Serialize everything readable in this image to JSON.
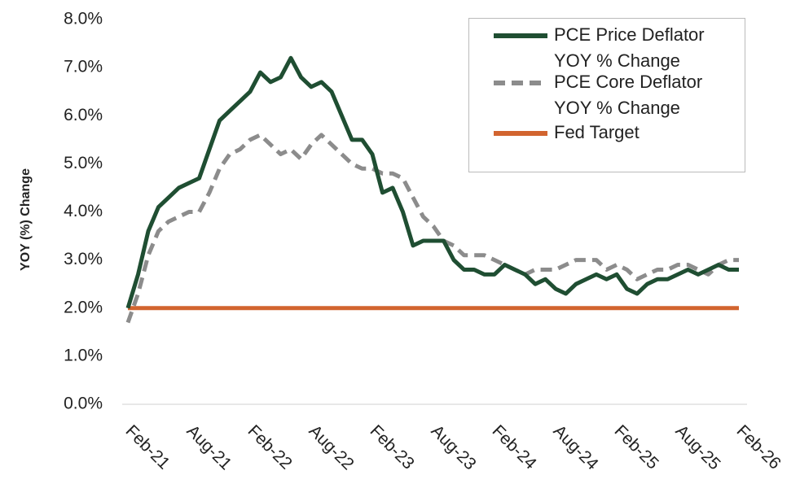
{
  "chart_data": {
    "type": "line",
    "y_label": "YOY (%) Change",
    "categories": [
      "Feb-21",
      null,
      null,
      null,
      null,
      null,
      "Aug-21",
      null,
      null,
      null,
      null,
      null,
      "Feb-22",
      null,
      null,
      null,
      null,
      null,
      "Aug-22",
      null,
      null,
      null,
      null,
      null,
      "Feb-23",
      null,
      null,
      null,
      null,
      null,
      "Aug-23",
      null,
      null,
      null,
      null,
      null,
      "Feb-24",
      null,
      null,
      null,
      null,
      null,
      "Aug-24",
      null,
      null,
      null,
      null,
      null,
      "Feb-25",
      null,
      null,
      null,
      null,
      null,
      "Aug-25",
      null,
      null,
      null,
      null,
      null,
      "Feb-26"
    ],
    "series": [
      {
        "name": "PCE Price Deflator YOY % Change",
        "color": "#1f4e32",
        "style": "solid",
        "values": [
          2.0,
          2.7,
          3.6,
          4.1,
          4.3,
          4.5,
          4.6,
          4.7,
          5.3,
          5.9,
          6.1,
          6.3,
          6.5,
          6.9,
          6.7,
          6.8,
          7.2,
          6.8,
          6.6,
          6.7,
          6.5,
          6.0,
          5.5,
          5.5,
          5.2,
          4.4,
          4.5,
          4.0,
          3.3,
          3.4,
          3.4,
          3.4,
          3.0,
          2.8,
          2.8,
          2.7,
          2.7,
          2.9,
          2.8,
          2.7,
          2.5,
          2.6,
          2.4,
          2.3,
          2.5,
          2.6,
          2.7,
          2.6,
          2.7,
          2.4,
          2.3,
          2.5,
          2.6,
          2.6,
          2.7,
          2.8,
          2.7,
          2.8,
          2.9,
          2.8,
          2.8
        ]
      },
      {
        "name": "PCE Core Deflator YOY % Change",
        "color": "#8c8c8c",
        "style": "dashed",
        "values": [
          1.7,
          2.3,
          3.1,
          3.6,
          3.8,
          3.9,
          4.0,
          4.0,
          4.4,
          4.9,
          5.2,
          5.3,
          5.5,
          5.6,
          5.4,
          5.2,
          5.3,
          5.1,
          5.4,
          5.6,
          5.4,
          5.2,
          5.0,
          4.9,
          4.9,
          4.8,
          4.8,
          4.7,
          4.3,
          3.9,
          3.7,
          3.4,
          3.3,
          3.1,
          3.1,
          3.1,
          3.0,
          2.9,
          2.8,
          2.7,
          2.8,
          2.8,
          2.8,
          2.9,
          3.0,
          3.0,
          3.0,
          2.8,
          2.9,
          2.8,
          2.6,
          2.7,
          2.8,
          2.8,
          2.9,
          2.9,
          2.8,
          2.7,
          2.9,
          3.0,
          3.0
        ]
      },
      {
        "name": "Fed Target",
        "color": "#d2642f",
        "style": "solid",
        "values": [
          2,
          2,
          2,
          2,
          2,
          2,
          2,
          2,
          2,
          2,
          2,
          2,
          2,
          2,
          2,
          2,
          2,
          2,
          2,
          2,
          2,
          2,
          2,
          2,
          2,
          2,
          2,
          2,
          2,
          2,
          2,
          2,
          2,
          2,
          2,
          2,
          2,
          2,
          2,
          2,
          2,
          2,
          2,
          2,
          2,
          2,
          2,
          2,
          2,
          2,
          2,
          2,
          2,
          2,
          2,
          2,
          2,
          2,
          2,
          2,
          2
        ]
      }
    ],
    "ylim": [
      0,
      8
    ],
    "yticks": [
      {
        "value": 0,
        "label": "0.0%"
      },
      {
        "value": 1,
        "label": "1.0%"
      },
      {
        "value": 2,
        "label": "2.0%"
      },
      {
        "value": 3,
        "label": "3.0%"
      },
      {
        "value": 4,
        "label": "4.0%"
      },
      {
        "value": 5,
        "label": "5.0%"
      },
      {
        "value": 6,
        "label": "6.0%"
      },
      {
        "value": 7,
        "label": "7.0%"
      },
      {
        "value": 8,
        "label": "8.0%"
      }
    ],
    "grid": false,
    "legend": "upper-right"
  }
}
